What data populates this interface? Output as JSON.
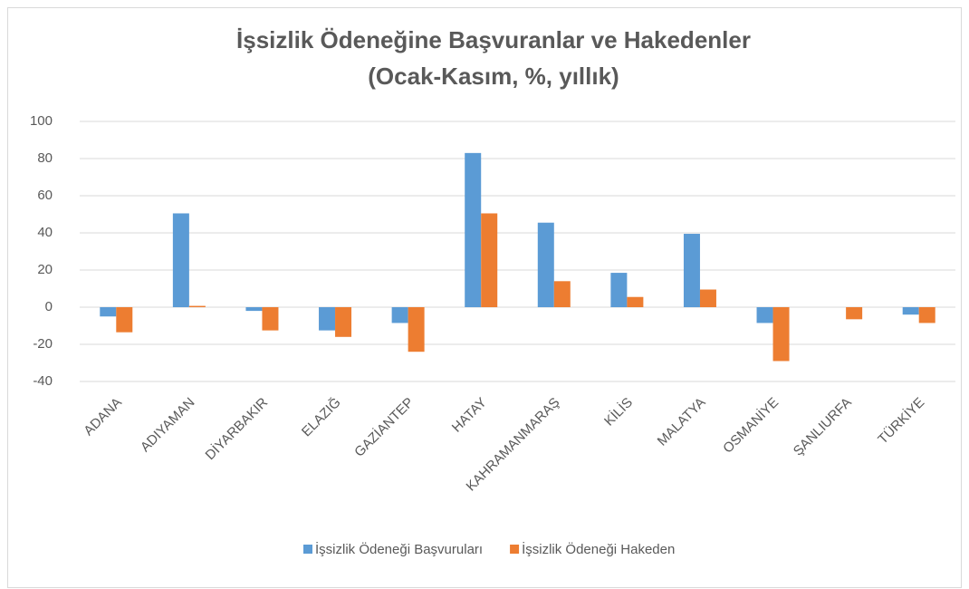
{
  "chart_data": {
    "type": "bar",
    "title": [
      "İşsizlik Ödeneğine Başvuranlar  ve Hakedenler",
      "(Ocak-Kasım, %, yıllık)"
    ],
    "categories": [
      "ADANA",
      "ADIYAMAN",
      "DİYARBAKIR",
      "ELAZIĞ",
      "GAZİANTEP",
      "HATAY",
      "KAHRAMANMARAŞ",
      "KİLİS",
      "MALATYA",
      "OSMANİYE",
      "ŞANLIURFA",
      "TÜRKİYE"
    ],
    "series": [
      {
        "name": "İşsizlik Ödeneği Başvuruları",
        "color": "#5b9bd5",
        "values": [
          -5,
          50.5,
          -2,
          -12.5,
          -8.5,
          83,
          45.5,
          18.5,
          39.5,
          -8.5,
          0,
          -4
        ]
      },
      {
        "name": "İşsizlik Ödeneği Hakeden",
        "color": "#ed7d31",
        "values": [
          -13.5,
          0.7,
          -12.5,
          -16,
          -24,
          50.5,
          14,
          5.5,
          9.5,
          -29,
          -6.5,
          -8.5
        ]
      }
    ],
    "ylim": [
      -40,
      100
    ],
    "yticks": [
      -40,
      -20,
      0,
      20,
      40,
      60,
      80,
      100
    ],
    "grid": true,
    "legend": "bottom"
  }
}
